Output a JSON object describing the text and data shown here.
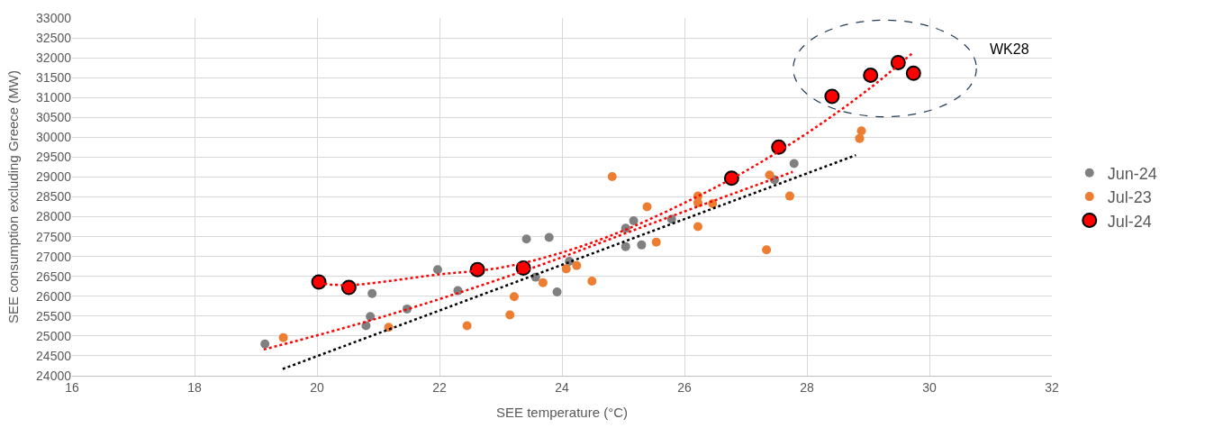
{
  "chart_data": {
    "type": "scatter",
    "xlabel": "SEE temperature (°C)",
    "ylabel": "SEE consumption excluding Greece (MW)",
    "xlim": [
      16,
      32
    ],
    "xticks": [
      16,
      18,
      20,
      22,
      24,
      26,
      28,
      30,
      32
    ],
    "ylim": [
      24000,
      33000
    ],
    "yticks": [
      24000,
      24500,
      25000,
      25500,
      26000,
      26500,
      27000,
      27500,
      28000,
      28500,
      29000,
      29500,
      30000,
      30500,
      31000,
      31500,
      32000,
      32500,
      33000
    ],
    "grid": true,
    "legend": "right",
    "marker": "circle",
    "annotations": [
      "WK28"
    ],
    "series": [
      {
        "name": "Jun-24",
        "color": "#808080",
        "x": [
          19.15,
          20.9,
          20.87,
          20.8,
          21.47,
          21.97,
          22.3,
          23.42,
          23.79,
          23.57,
          23.92,
          24.12,
          25.04,
          25.17,
          25.04,
          25.3,
          25.79,
          27.47,
          27.79
        ],
        "values": [
          24800,
          26070,
          25490,
          25260,
          25680,
          26670,
          26140,
          27440,
          27480,
          26480,
          26110,
          26880,
          27710,
          27900,
          27250,
          27290,
          27940,
          28930,
          29340
        ]
      },
      {
        "name": "Jul-23",
        "color": "#ed7d31",
        "x": [
          19.45,
          21.17,
          22.45,
          23.15,
          23.22,
          23.69,
          24.07,
          24.24,
          24.49,
          24.82,
          25.39,
          25.54,
          26.22,
          26.22,
          26.46,
          26.22,
          27.39,
          27.72,
          27.34,
          28.89,
          28.86
        ],
        "values": [
          24960,
          25220,
          25260,
          25530,
          25990,
          26340,
          26690,
          26770,
          26380,
          29010,
          28250,
          27360,
          28520,
          28350,
          28330,
          27750,
          29050,
          28520,
          27170,
          30160,
          29970
        ]
      },
      {
        "name": "Jul-24",
        "color": "#ff0000",
        "x": [
          20.03,
          20.52,
          22.62,
          23.37,
          26.77,
          27.54,
          28.41,
          29.04,
          29.49,
          29.74
        ],
        "values": [
          26360,
          26220,
          26670,
          26710,
          28970,
          29750,
          31030,
          31560,
          31880,
          31610
        ]
      },
      {
        "type": "line",
        "marker": "none",
        "line_style": "dotted",
        "color": "#ff0000",
        "x": [
          20.03,
          20.5,
          22,
          23,
          24,
          25,
          26,
          27,
          28,
          29,
          29.71
        ],
        "values": [
          26330,
          26280,
          26550,
          26720,
          27100,
          27650,
          28350,
          29150,
          30100,
          31200,
          32100
        ]
      },
      {
        "type": "line",
        "marker": "none",
        "line_style": "dotted",
        "color": "#ff0000",
        "x": [
          19.13,
          21,
          23.4,
          25.5,
          27.77
        ],
        "values": [
          24660,
          25450,
          26650,
          27850,
          29130
        ]
      },
      {
        "type": "line",
        "marker": "none",
        "line_style": "dotted",
        "color": "#000000",
        "x": [
          19.44,
          28.8
        ],
        "values": [
          24170,
          29550
        ]
      }
    ]
  }
}
